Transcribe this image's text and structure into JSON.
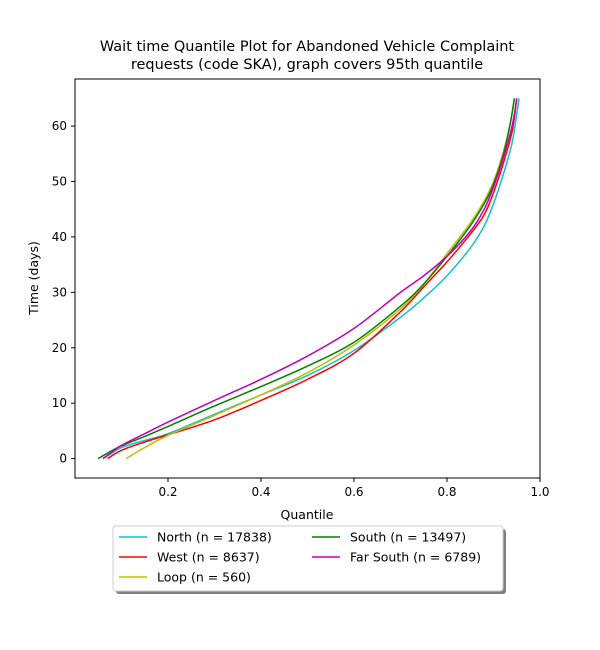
{
  "chart_data": {
    "type": "line",
    "title": [
      "Wait time Quantile Plot for Abandoned Vehicle Complaint",
      "requests (code SKA), graph covers 95th quantile"
    ],
    "xlabel": "Quantile",
    "ylabel": "Time (days)",
    "xlim": [
      0.0,
      1.0
    ],
    "ylim": [
      -3.5,
      68.5
    ],
    "xticks": [
      0.2,
      0.4,
      0.6,
      0.8,
      1.0
    ],
    "xtick_labels": [
      "0.2",
      "0.4",
      "0.6",
      "0.8",
      "1.0"
    ],
    "yticks": [
      0,
      10,
      20,
      30,
      40,
      50,
      60
    ],
    "ytick_labels": [
      "0",
      "10",
      "20",
      "30",
      "40",
      "50",
      "60"
    ],
    "grid": false,
    "legend_position": "bottom-center",
    "series": [
      {
        "name": "North (n = 17838)",
        "color": "#17becf",
        "points": [
          [
            0.06,
            0
          ],
          [
            0.08,
            1
          ],
          [
            0.1,
            2
          ],
          [
            0.15,
            3.3
          ],
          [
            0.2,
            4.5
          ],
          [
            0.3,
            8
          ],
          [
            0.4,
            11.5
          ],
          [
            0.5,
            15
          ],
          [
            0.6,
            19.5
          ],
          [
            0.7,
            25.5
          ],
          [
            0.75,
            29
          ],
          [
            0.8,
            33
          ],
          [
            0.85,
            38
          ],
          [
            0.88,
            42
          ],
          [
            0.9,
            46
          ],
          [
            0.92,
            51
          ],
          [
            0.94,
            57
          ],
          [
            0.955,
            65
          ]
        ]
      },
      {
        "name": "West (n = 8637)",
        "color": "#ff0000",
        "points": [
          [
            0.07,
            0
          ],
          [
            0.1,
            1.5
          ],
          [
            0.15,
            3
          ],
          [
            0.2,
            4.3
          ],
          [
            0.3,
            7
          ],
          [
            0.4,
            10.5
          ],
          [
            0.5,
            14.3
          ],
          [
            0.6,
            19
          ],
          [
            0.7,
            26.5
          ],
          [
            0.75,
            31
          ],
          [
            0.8,
            35.5
          ],
          [
            0.85,
            40.5
          ],
          [
            0.88,
            44
          ],
          [
            0.9,
            48
          ],
          [
            0.92,
            53
          ],
          [
            0.94,
            59
          ],
          [
            0.95,
            65
          ]
        ]
      },
      {
        "name": "Loop (n = 560)",
        "color": "#bfbf00",
        "points": [
          [
            0.11,
            0
          ],
          [
            0.15,
            2
          ],
          [
            0.2,
            4.2
          ],
          [
            0.3,
            7.8
          ],
          [
            0.4,
            11.5
          ],
          [
            0.5,
            15.5
          ],
          [
            0.6,
            20.5
          ],
          [
            0.7,
            27
          ],
          [
            0.75,
            31.5
          ],
          [
            0.8,
            37
          ],
          [
            0.85,
            42.5
          ],
          [
            0.88,
            46.5
          ],
          [
            0.9,
            50
          ],
          [
            0.92,
            55
          ],
          [
            0.935,
            60
          ],
          [
            0.945,
            65
          ]
        ]
      },
      {
        "name": "South (n = 13497)",
        "color": "#008000",
        "points": [
          [
            0.05,
            0
          ],
          [
            0.07,
            1
          ],
          [
            0.1,
            2.3
          ],
          [
            0.15,
            4
          ],
          [
            0.2,
            5.8
          ],
          [
            0.3,
            9.5
          ],
          [
            0.4,
            13
          ],
          [
            0.5,
            16.7
          ],
          [
            0.6,
            21
          ],
          [
            0.7,
            27.5
          ],
          [
            0.75,
            31.5
          ],
          [
            0.8,
            36.5
          ],
          [
            0.85,
            42
          ],
          [
            0.88,
            46
          ],
          [
            0.9,
            49.5
          ],
          [
            0.92,
            54.5
          ],
          [
            0.935,
            60
          ],
          [
            0.945,
            65
          ]
        ]
      },
      {
        "name": "Far South (n = 6789)",
        "color": "#bf00bf",
        "points": [
          [
            0.06,
            0
          ],
          [
            0.08,
            1.2
          ],
          [
            0.1,
            2.4
          ],
          [
            0.15,
            4.5
          ],
          [
            0.2,
            6.6
          ],
          [
            0.3,
            10.5
          ],
          [
            0.4,
            14.3
          ],
          [
            0.5,
            18.5
          ],
          [
            0.6,
            23.5
          ],
          [
            0.7,
            30
          ],
          [
            0.75,
            33
          ],
          [
            0.8,
            36.5
          ],
          [
            0.85,
            41
          ],
          [
            0.88,
            45
          ],
          [
            0.9,
            49
          ],
          [
            0.92,
            54
          ],
          [
            0.94,
            60
          ],
          [
            0.95,
            65
          ]
        ]
      }
    ]
  }
}
